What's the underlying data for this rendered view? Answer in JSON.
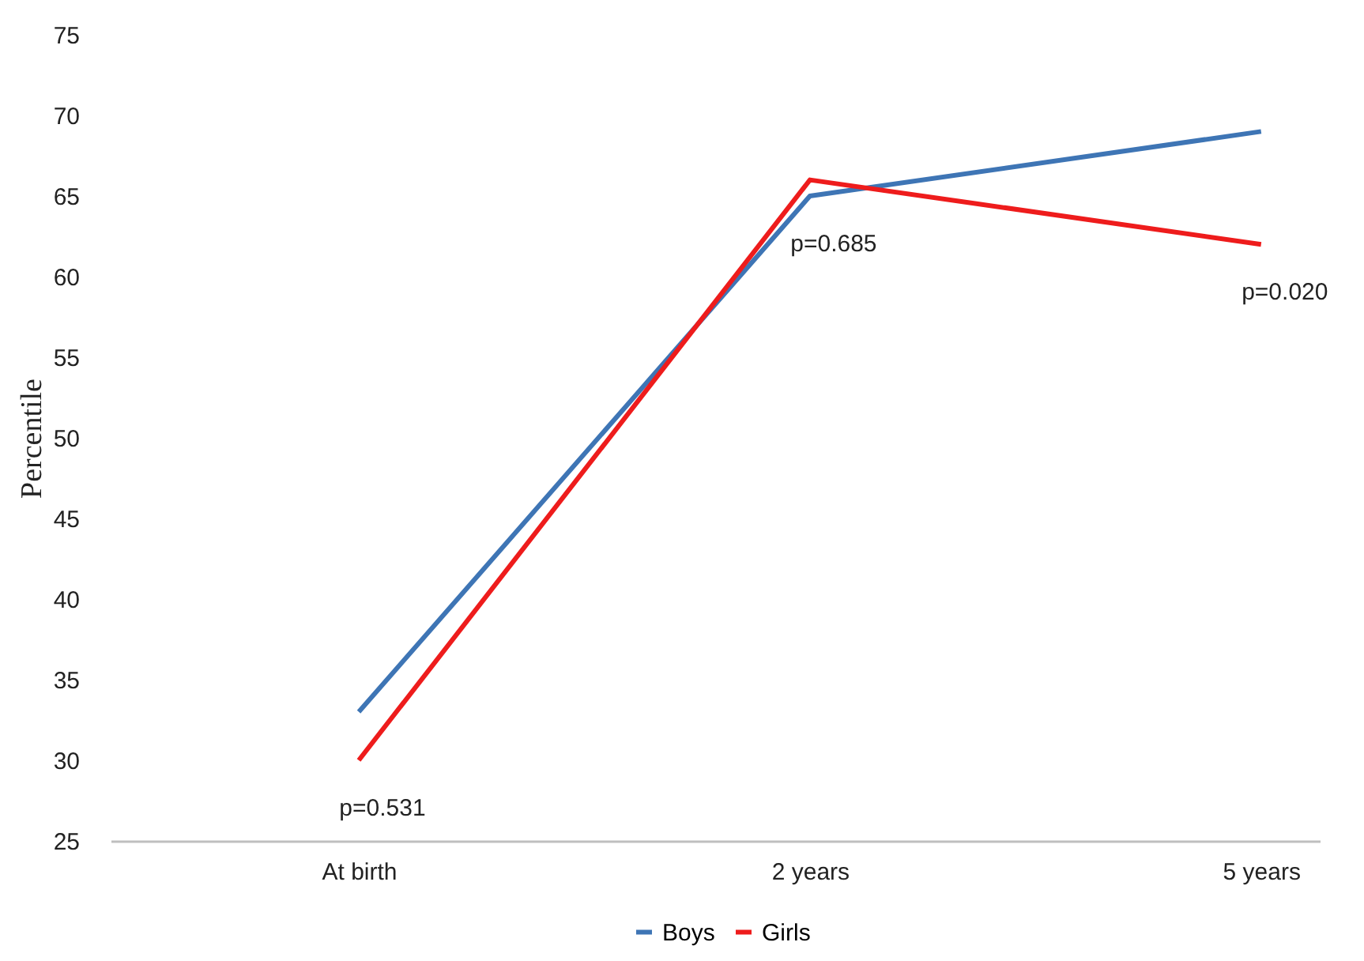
{
  "chart_data": {
    "type": "line",
    "ylabel": "Percentile",
    "categories": [
      "At birth",
      "2 years",
      "5 years"
    ],
    "series": [
      {
        "name": "Boys",
        "color": "#3e75b5",
        "values": [
          33,
          65,
          69
        ]
      },
      {
        "name": "Girls",
        "color": "#ee1c1c",
        "values": [
          30,
          66,
          62
        ]
      }
    ],
    "ylim": [
      25,
      75
    ],
    "yticks": [
      25,
      30,
      35,
      40,
      45,
      50,
      55,
      60,
      65,
      70,
      75
    ],
    "grid": false,
    "legend": "bottom",
    "marker": "none",
    "line_style": "solid",
    "annotations": [
      "p=0.531",
      "p=0.685",
      "p=0.020"
    ]
  }
}
